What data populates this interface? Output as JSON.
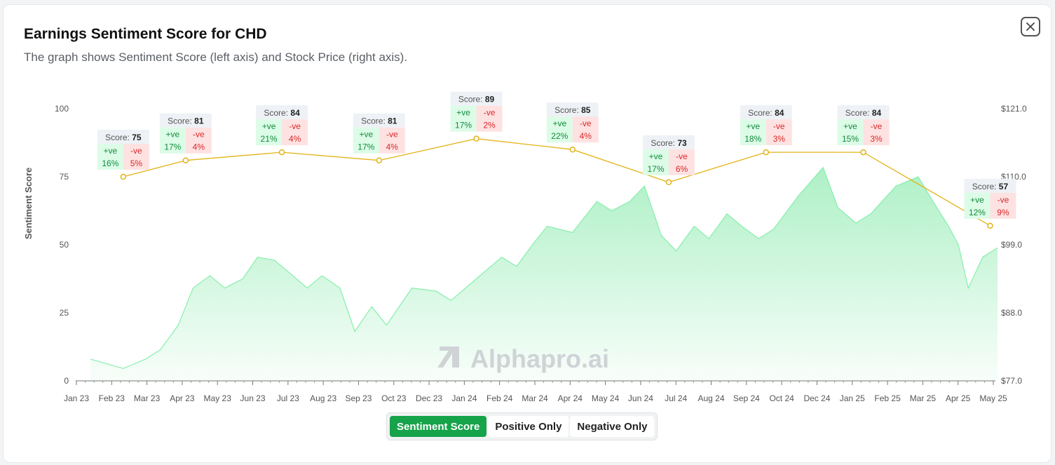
{
  "header": {
    "title": "Earnings Sentiment Score for CHD",
    "subtitle": "The graph shows Sentiment Score (left axis) and Stock Price (right axis).",
    "close_icon": "close-icon"
  },
  "toggle": {
    "buttons": [
      "Sentiment Score",
      "Positive Only",
      "Negative Only"
    ],
    "active": "Sentiment Score"
  },
  "watermark": "Alphapro.ai",
  "colors": {
    "price_fill": "#4ade80",
    "price_line": "#86efac",
    "score_line": "#e3b316",
    "active": "#16a34a",
    "pos_bg": "#dcfce7",
    "neg_bg": "#fee2e2"
  },
  "chart_data": {
    "type": "line",
    "x_ticks": [
      "Jan 23",
      "Feb 23",
      "Mar 23",
      "Apr 23",
      "May 23",
      "Jun 23",
      "Jul 23",
      "Aug 23",
      "Sep 23",
      "Oct 23",
      "Dec 23",
      "Jan 24",
      "Feb 24",
      "Mar 24",
      "Apr 24",
      "May 24",
      "Jun 24",
      "Jul 24",
      "Aug 24",
      "Sep 24",
      "Oct 24",
      "Dec 24",
      "Jan 25",
      "Feb 25",
      "Mar 25",
      "Apr 25",
      "May 25"
    ],
    "y_left": {
      "label": "Sentiment Score",
      "ticks": [
        "0",
        "25",
        "50",
        "75",
        "100"
      ],
      "range": [
        0,
        100
      ]
    },
    "y_right": {
      "label": "",
      "ticks": [
        "$77.0",
        "$88.0",
        "$99.0",
        "$110.0",
        "$121.0"
      ],
      "range": [
        77,
        121
      ]
    },
    "score_label": "Score:",
    "pos_label": "+ve",
    "neg_label": "-ve",
    "sentiment": [
      {
        "date": "Feb 2023",
        "score": 75,
        "pos": "16%",
        "neg": "5%"
      },
      {
        "date": "Apr 2023",
        "score": 81,
        "pos": "17%",
        "neg": "4%"
      },
      {
        "date": "Jul 2023",
        "score": 84,
        "pos": "21%",
        "neg": "4%"
      },
      {
        "date": "Oct 2023",
        "score": 81,
        "pos": "17%",
        "neg": "4%"
      },
      {
        "date": "Jan 2024",
        "score": 89,
        "pos": "17%",
        "neg": "2%"
      },
      {
        "date": "Apr 2024",
        "score": 85,
        "pos": "22%",
        "neg": "4%"
      },
      {
        "date": "Jul 2024",
        "score": 73,
        "pos": "17%",
        "neg": "6%"
      },
      {
        "date": "Oct 2024",
        "score": 84,
        "pos": "18%",
        "neg": "3%"
      },
      {
        "date": "Jan 2025",
        "score": 84,
        "pos": "15%",
        "neg": "3%"
      },
      {
        "date": "May 2025",
        "score": 57,
        "pos": "12%",
        "neg": "9%"
      }
    ],
    "price": [
      [
        "Jan 2023",
        80.5
      ],
      [
        "Feb 2023",
        79.0
      ],
      [
        "Mar 2023",
        80.5
      ],
      [
        "Mar 2023",
        82.0
      ],
      [
        "Apr 2023",
        86.0
      ],
      [
        "Apr 2023",
        92.0
      ],
      [
        "May 2023",
        94.0
      ],
      [
        "May 2023",
        92.0
      ],
      [
        "Jun 2023",
        93.5
      ],
      [
        "Jun 2023",
        97.0
      ],
      [
        "Jul 2023",
        96.5
      ],
      [
        "Jul 2023",
        94.5
      ],
      [
        "Aug 2023",
        92.0
      ],
      [
        "Aug 2023",
        94.0
      ],
      [
        "Sep 2023",
        92.0
      ],
      [
        "Sep 2023",
        85.0
      ],
      [
        "Oct 2023",
        89.0
      ],
      [
        "Oct 2023",
        86.0
      ],
      [
        "Nov 2023",
        92.0
      ],
      [
        "Dec 2023",
        91.5
      ],
      [
        "Dec 2023",
        90.0
      ],
      [
        "Jan 2024",
        93.5
      ],
      [
        "Feb 2024",
        97.0
      ],
      [
        "Feb 2024",
        95.5
      ],
      [
        "Mar 2024",
        99.0
      ],
      [
        "Mar 2024",
        102.0
      ],
      [
        "Apr 2024",
        101.0
      ],
      [
        "May 2024",
        106.0
      ],
      [
        "May 2024",
        104.5
      ],
      [
        "Jun 2024",
        106.0
      ],
      [
        "Jun 2024",
        108.5
      ],
      [
        "Jul 2024",
        100.5
      ],
      [
        "Jul 2024",
        98.0
      ],
      [
        "Aug 2024",
        102.0
      ],
      [
        "Aug 2024",
        100.0
      ],
      [
        "Sep 2024",
        104.0
      ],
      [
        "Sep 2024",
        102.0
      ],
      [
        "Oct 2024",
        100.0
      ],
      [
        "Oct 2024",
        101.5
      ],
      [
        "Nov 2024",
        107.0
      ],
      [
        "Dec 2024",
        111.5
      ],
      [
        "Dec 2024",
        105.0
      ],
      [
        "Jan 2025",
        102.5
      ],
      [
        "Jan 2025",
        104.0
      ],
      [
        "Feb 2025",
        108.5
      ],
      [
        "Mar 2025",
        110.0
      ],
      [
        "Mar 2025",
        106.0
      ],
      [
        "Apr 2025",
        102.0
      ],
      [
        "Apr 2025",
        99.0
      ],
      [
        "Apr 2025",
        92.0
      ],
      [
        "May 2025",
        97.0
      ],
      [
        "May 2025",
        98.5
      ]
    ]
  }
}
